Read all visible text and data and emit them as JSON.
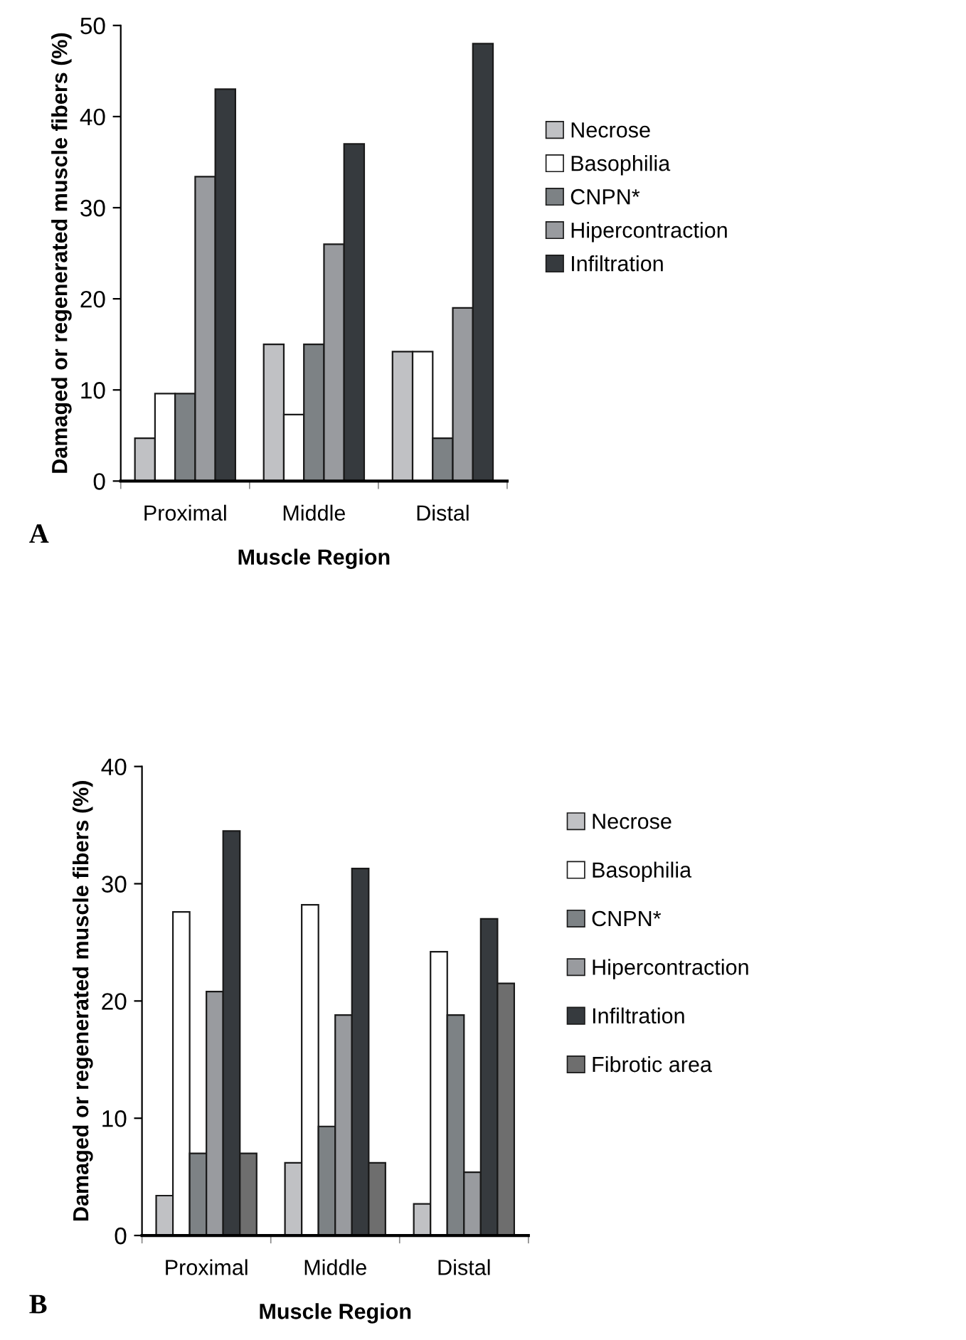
{
  "chart_data": [
    {
      "type": "bar",
      "xlabel": "Muscle Region",
      "ylabel": "Damaged or regenerated muscle fibers (%)",
      "categories": [
        "Proximal",
        "Middle",
        "Distal"
      ],
      "ylim": [
        0,
        50
      ],
      "yticks": [
        0,
        10,
        20,
        30,
        40,
        50
      ],
      "grid": false,
      "legend": "right",
      "annotations": [
        "A"
      ],
      "series": [
        {
          "name": "Necrose",
          "color": "#c0c1c4",
          "values": [
            4.7,
            15.0,
            14.2
          ]
        },
        {
          "name": "Basophilia",
          "color": "#ffffff",
          "values": [
            9.6,
            7.3,
            14.2
          ]
        },
        {
          "name": "CNPN*",
          "color": "#7d8285",
          "values": [
            9.6,
            15.0,
            4.7
          ]
        },
        {
          "name": "Hipercontraction",
          "color": "#999b9f",
          "values": [
            33.4,
            26.0,
            19.0
          ]
        },
        {
          "name": "Infiltration",
          "color": "#363a3e",
          "values": [
            43.0,
            37.0,
            48.0
          ]
        }
      ]
    },
    {
      "type": "bar",
      "xlabel": "Muscle Region",
      "ylabel": "Damaged or regenerated muscle fibers (%)",
      "categories": [
        "Proximal",
        "Middle",
        "Distal"
      ],
      "ylim": [
        0,
        40
      ],
      "yticks": [
        0,
        10,
        20,
        30,
        40
      ],
      "grid": false,
      "legend": "right",
      "annotations": [
        "B"
      ],
      "series": [
        {
          "name": "Necrose",
          "color": "#c0c1c4",
          "values": [
            3.4,
            6.2,
            2.7
          ]
        },
        {
          "name": "Basophilia",
          "color": "#ffffff",
          "values": [
            27.6,
            28.2,
            24.2
          ]
        },
        {
          "name": "CNPN*",
          "color": "#7d8285",
          "values": [
            7.0,
            9.3,
            18.8
          ]
        },
        {
          "name": "Hipercontraction",
          "color": "#999b9f",
          "values": [
            20.8,
            18.8,
            5.4
          ]
        },
        {
          "name": "Infiltration",
          "color": "#363a3e",
          "values": [
            34.5,
            31.3,
            27.0
          ]
        },
        {
          "name": "Fibrotic area",
          "color": "#6e6e6e",
          "values": [
            7.0,
            6.2,
            21.5
          ]
        }
      ]
    }
  ]
}
